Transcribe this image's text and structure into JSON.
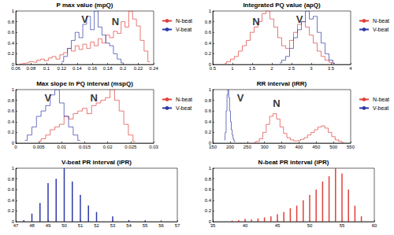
{
  "chart_data": [
    {
      "type": "line",
      "title": "P max value (mpQ)",
      "xlim": [
        0.06,
        0.24
      ],
      "xticks": [
        0.06,
        0.08,
        0.1,
        0.12,
        0.14,
        0.16,
        0.18,
        0.2,
        0.22,
        0.24
      ],
      "ylim": [
        0,
        1
      ],
      "yticks": [
        0,
        0.2,
        0.4,
        0.6,
        0.8,
        1
      ],
      "grid": false,
      "legend": "right",
      "series": [
        {
          "name": "N-beat",
          "color": "#e0403a",
          "x": [
            0.065,
            0.07,
            0.075,
            0.08,
            0.085,
            0.09,
            0.095,
            0.1,
            0.105,
            0.11,
            0.115,
            0.12,
            0.125,
            0.13,
            0.135,
            0.14,
            0.145,
            0.15,
            0.155,
            0.16,
            0.165,
            0.17,
            0.175,
            0.18,
            0.185,
            0.19,
            0.195,
            0.2,
            0.205,
            0.21,
            0.215,
            0.22,
            0.225,
            0.23,
            0.235
          ],
          "values": [
            0.01,
            0.02,
            0.03,
            0.05,
            0.04,
            0.08,
            0.1,
            0.07,
            0.12,
            0.15,
            0.1,
            0.18,
            0.22,
            0.3,
            0.25,
            0.35,
            0.28,
            0.38,
            0.3,
            0.42,
            0.35,
            0.48,
            0.4,
            0.55,
            0.5,
            0.62,
            0.58,
            0.8,
            0.7,
            1.0,
            0.85,
            0.72,
            0.45,
            0.25,
            0.05
          ]
        },
        {
          "name": "V-beat",
          "color": "#2e3aa8",
          "x": [
            0.12,
            0.125,
            0.13,
            0.135,
            0.14,
            0.145,
            0.15,
            0.155,
            0.16,
            0.165,
            0.17,
            0.175,
            0.18,
            0.185,
            0.19,
            0.195,
            0.2
          ],
          "values": [
            0.05,
            0.15,
            0.3,
            0.45,
            0.6,
            0.5,
            0.75,
            0.9,
            0.65,
            1.0,
            0.7,
            0.55,
            0.4,
            0.35,
            0.2,
            0.1,
            0.03
          ]
        }
      ],
      "annotations": [
        {
          "text": "V",
          "x": 0.15,
          "y": 0.85
        },
        {
          "text": "N",
          "x": 0.19,
          "y": 0.8
        }
      ]
    },
    {
      "type": "line",
      "title": "Integrated PQ value (apQ)",
      "xlim": [
        0.5,
        4
      ],
      "xticks": [
        0.5,
        1,
        1.5,
        2,
        2.5,
        3,
        3.5,
        4
      ],
      "ylim": [
        0,
        1
      ],
      "yticks": [
        0,
        0.2,
        0.4,
        0.6,
        0.8,
        1
      ],
      "grid": false,
      "legend": "right",
      "series": [
        {
          "name": "N-beat",
          "color": "#e0403a",
          "x": [
            0.8,
            0.9,
            1.0,
            1.1,
            1.2,
            1.3,
            1.4,
            1.5,
            1.6,
            1.7,
            1.8,
            1.9,
            2.0,
            2.1,
            2.2,
            2.3,
            2.4,
            2.5,
            2.6,
            2.7,
            2.8,
            2.9,
            3.0,
            3.1,
            3.2,
            3.3,
            3.4,
            3.5,
            3.6
          ],
          "values": [
            0.02,
            0.05,
            0.1,
            0.15,
            0.25,
            0.35,
            0.45,
            0.6,
            0.7,
            0.8,
            0.95,
            1.0,
            0.85,
            0.7,
            0.5,
            0.35,
            0.3,
            0.45,
            0.6,
            0.75,
            0.8,
            0.7,
            0.55,
            0.4,
            0.25,
            0.15,
            0.08,
            0.04,
            0.02
          ]
        },
        {
          "name": "V-beat",
          "color": "#2e3aa8",
          "x": [
            2.2,
            2.3,
            2.4,
            2.5,
            2.6,
            2.7,
            2.8,
            2.9,
            3.0,
            3.1,
            3.2,
            3.3,
            3.4,
            3.5,
            3.6
          ],
          "values": [
            0.03,
            0.08,
            0.15,
            0.3,
            0.5,
            0.65,
            0.8,
            1.0,
            0.85,
            0.9,
            0.6,
            0.4,
            0.2,
            0.08,
            0.02
          ]
        }
      ],
      "annotations": [
        {
          "text": "N",
          "x": 1.6,
          "y": 0.8
        },
        {
          "text": "V",
          "x": 2.7,
          "y": 0.85
        }
      ]
    },
    {
      "type": "line",
      "title": "Max slope in PQ interval (mspQ)",
      "xlim": [
        0,
        0.03
      ],
      "xticks": [
        0,
        0.005,
        0.01,
        0.015,
        0.02,
        0.025,
        0.03
      ],
      "ylim": [
        0,
        1
      ],
      "yticks": [
        0,
        0.2,
        0.4,
        0.6,
        0.8,
        1
      ],
      "grid": false,
      "legend": "right",
      "series": [
        {
          "name": "N-beat",
          "color": "#e0403a",
          "x": [
            0.005,
            0.006,
            0.007,
            0.008,
            0.009,
            0.01,
            0.011,
            0.012,
            0.013,
            0.014,
            0.015,
            0.016,
            0.017,
            0.018,
            0.019,
            0.02,
            0.021,
            0.022,
            0.023,
            0.024,
            0.025,
            0.026
          ],
          "values": [
            0.03,
            0.08,
            0.15,
            0.25,
            0.3,
            0.35,
            0.5,
            0.45,
            0.55,
            0.6,
            0.65,
            0.55,
            0.7,
            0.75,
            0.8,
            0.85,
            1.0,
            0.8,
            0.6,
            0.35,
            0.15,
            0.03
          ]
        },
        {
          "name": "V-beat",
          "color": "#2e3aa8",
          "x": [
            0.002,
            0.003,
            0.004,
            0.005,
            0.006,
            0.007,
            0.008,
            0.009,
            0.01,
            0.011,
            0.012,
            0.013,
            0.014
          ],
          "values": [
            0.05,
            0.15,
            0.3,
            0.5,
            0.6,
            0.7,
            0.9,
            1.0,
            0.75,
            0.5,
            0.3,
            0.15,
            0.05
          ]
        }
      ],
      "annotations": [
        {
          "text": "V",
          "x": 0.007,
          "y": 0.85
        },
        {
          "text": "N",
          "x": 0.017,
          "y": 0.85
        }
      ]
    },
    {
      "type": "line",
      "title": "RR interval (iRR)",
      "xlim": [
        150,
        550
      ],
      "xticks": [
        150,
        200,
        250,
        300,
        350,
        400,
        450,
        500,
        550
      ],
      "ylim": [
        0,
        1
      ],
      "yticks": [
        0,
        0.2,
        0.4,
        0.6,
        0.8,
        1
      ],
      "grid": false,
      "legend": "right",
      "series": [
        {
          "name": "N-beat",
          "color": "#e0403a",
          "x": [
            270,
            280,
            290,
            300,
            310,
            320,
            330,
            340,
            350,
            360,
            370,
            380,
            390,
            400,
            410,
            420,
            430,
            440,
            450,
            460,
            470,
            480,
            490,
            500,
            510,
            520,
            530
          ],
          "values": [
            0.01,
            0.03,
            0.08,
            0.2,
            0.35,
            0.5,
            0.55,
            0.45,
            0.3,
            0.18,
            0.1,
            0.06,
            0.04,
            0.05,
            0.07,
            0.1,
            0.15,
            0.2,
            0.25,
            0.3,
            0.32,
            0.28,
            0.2,
            0.12,
            0.06,
            0.03,
            0.01
          ]
        },
        {
          "name": "V-beat",
          "color": "#2e3aa8",
          "x": [
            185,
            187.5,
            190,
            192.5,
            195,
            197.5,
            200,
            202.5,
            205,
            207.5,
            210,
            212.5,
            215
          ],
          "values": [
            0.05,
            0.2,
            0.6,
            0.9,
            1.0,
            0.85,
            0.6,
            0.4,
            0.25,
            0.15,
            0.08,
            0.04,
            0.02
          ]
        }
      ],
      "annotations": [
        {
          "text": "V",
          "x": 230,
          "y": 0.85
        },
        {
          "text": "N",
          "x": 335,
          "y": 0.75
        }
      ]
    },
    {
      "type": "bar",
      "title": "V-beat PR interval (iPR)",
      "xlim": [
        47,
        57
      ],
      "xticks": [
        47,
        48,
        49,
        50,
        51,
        52,
        53,
        54,
        55,
        56,
        57
      ],
      "ylim": [
        0,
        1
      ],
      "yticks": [
        0,
        0.2,
        0.4,
        0.6,
        0.8,
        1
      ],
      "grid": false,
      "series": [
        {
          "name": "V-beat",
          "color": "#2e3aa8",
          "x": [
            47.5,
            48,
            48.5,
            49,
            49.5,
            50,
            50.5,
            51,
            51.5,
            52,
            53,
            54,
            55
          ],
          "values": [
            0.03,
            0.15,
            0.35,
            0.72,
            0.8,
            1.0,
            0.75,
            0.5,
            0.3,
            0.18,
            0.1,
            0.03,
            0.02
          ]
        }
      ]
    },
    {
      "type": "bar",
      "title": "N-beat PR interval (iPR)",
      "xlim": [
        35,
        60
      ],
      "xticks": [
        35,
        40,
        45,
        50,
        55,
        60
      ],
      "ylim": [
        0,
        1
      ],
      "yticks": [
        0,
        0.2,
        0.4,
        0.6,
        0.8,
        1
      ],
      "grid": false,
      "series": [
        {
          "name": "N-beat",
          "color": "#e0403a",
          "x": [
            38,
            39,
            40,
            41,
            42,
            43,
            44,
            45,
            46,
            47,
            48,
            49,
            50,
            51,
            52,
            53,
            54,
            55,
            56,
            57,
            58
          ],
          "values": [
            0.02,
            0.03,
            0.05,
            0.04,
            0.06,
            0.08,
            0.1,
            0.14,
            0.18,
            0.25,
            0.3,
            0.4,
            0.5,
            0.6,
            0.75,
            0.85,
            1.0,
            0.9,
            0.6,
            0.3,
            0.1
          ]
        }
      ]
    }
  ]
}
